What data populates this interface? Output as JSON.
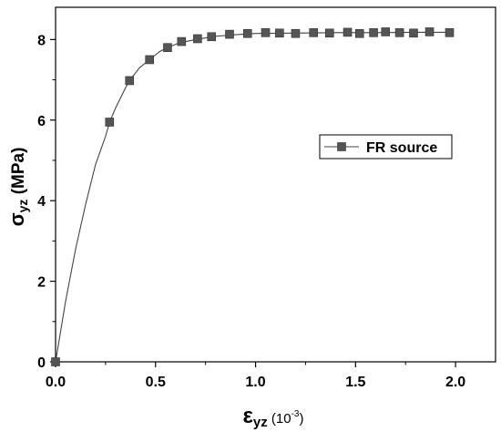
{
  "chart_data": {
    "type": "line",
    "xlabel": {
      "symbol": "ε",
      "sub": "yz",
      "unit_prefix": " (10",
      "unit_sup": "-3",
      "unit_suffix": ")"
    },
    "ylabel": {
      "symbol": "σ",
      "sub": "yz",
      "unit": " (MPa)"
    },
    "xlim": [
      0,
      2.2
    ],
    "ylim": [
      0,
      8.8
    ],
    "x_ticks": [
      "0.0",
      "0.5",
      "1.0",
      "1.5",
      "2.0"
    ],
    "y_ticks": [
      "0",
      "2",
      "4",
      "6",
      "8"
    ],
    "x_tick_values": [
      0,
      0.5,
      1.0,
      1.5,
      2.0
    ],
    "y_tick_values": [
      0,
      2,
      4,
      6,
      8
    ],
    "grid": false,
    "legend_position": "right",
    "series": [
      {
        "name": "FR source",
        "color": "#555555",
        "marker": "square",
        "line_x": [
          0,
          0.05,
          0.1,
          0.15,
          0.2,
          0.25,
          0.27,
          0.3,
          0.35,
          0.37,
          0.42,
          0.47,
          0.52,
          0.56,
          0.62,
          0.7,
          0.8,
          0.9,
          1.0,
          1.2,
          1.4,
          1.6,
          1.8,
          1.97
        ],
        "line_y": [
          0,
          1.5,
          2.8,
          3.9,
          4.9,
          5.6,
          5.95,
          6.3,
          6.8,
          6.98,
          7.3,
          7.5,
          7.7,
          7.8,
          7.92,
          8.0,
          8.08,
          8.12,
          8.15,
          8.16,
          8.17,
          8.17,
          8.18,
          8.18
        ],
        "markers_x": [
          0,
          0.27,
          0.37,
          0.47,
          0.56,
          0.63,
          0.71,
          0.78,
          0.87,
          0.96,
          1.05,
          1.12,
          1.2,
          1.29,
          1.37,
          1.46,
          1.52,
          1.59,
          1.65,
          1.72,
          1.79,
          1.87,
          1.97
        ],
        "markers_y": [
          0,
          5.95,
          6.98,
          7.5,
          7.8,
          7.95,
          8.02,
          8.07,
          8.13,
          8.15,
          8.17,
          8.16,
          8.15,
          8.17,
          8.16,
          8.18,
          8.15,
          8.17,
          8.19,
          8.17,
          8.16,
          8.19,
          8.17
        ]
      }
    ]
  }
}
